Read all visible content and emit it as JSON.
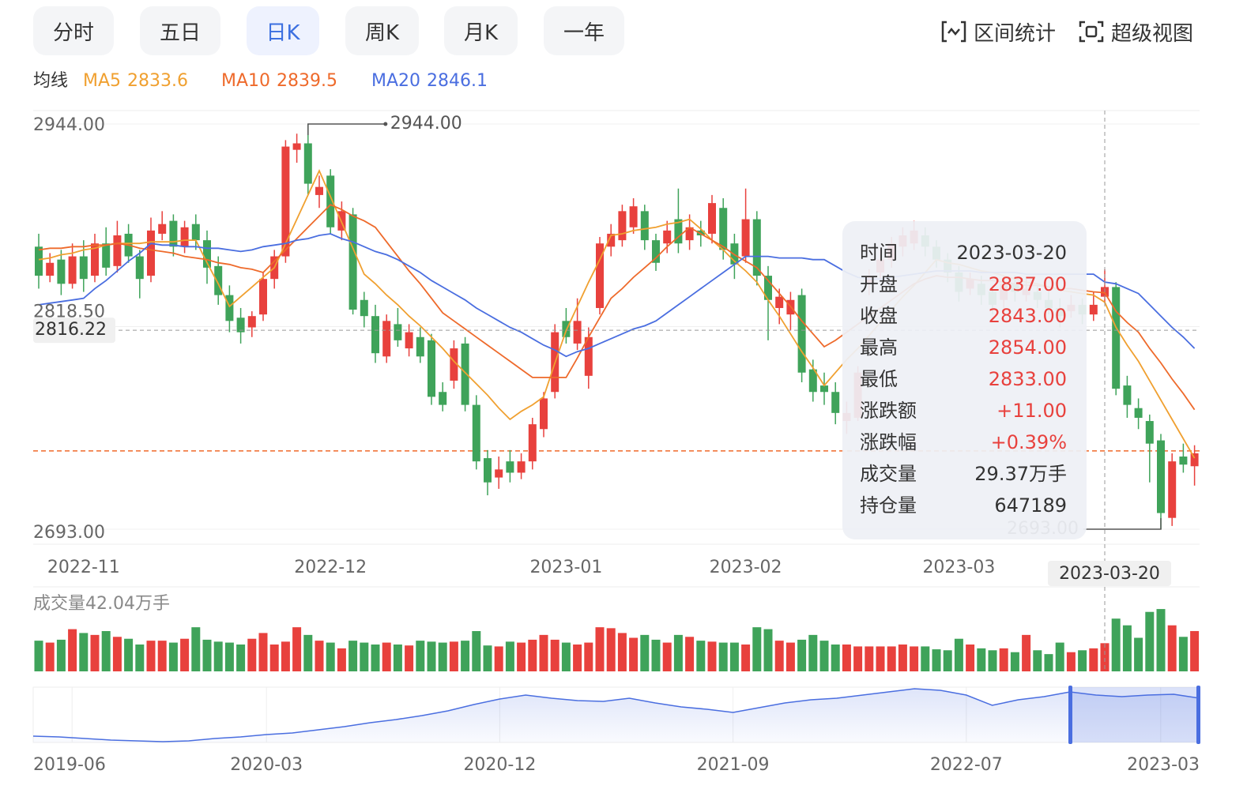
{
  "tabs": [
    "分时",
    "五日",
    "日K",
    "周K",
    "月K",
    "一年"
  ],
  "active_tab": 2,
  "tools": [
    "区间统计",
    "超级视图"
  ],
  "chart_data": {
    "type": "candlestick",
    "ma_legend_title": "均线",
    "categories": [
      null,
      null,
      null,
      null,
      "2022-11",
      null,
      null,
      null,
      null,
      null,
      null,
      null,
      null,
      null,
      null,
      null,
      null,
      null,
      null,
      null,
      null,
      null,
      null,
      null,
      null,
      null,
      "2022-12",
      null,
      null,
      null,
      null,
      null,
      null,
      null,
      null,
      null,
      null,
      null,
      null,
      null,
      null,
      null,
      null,
      null,
      null,
      null,
      null,
      "2023-01",
      null,
      null,
      null,
      null,
      null,
      null,
      null,
      null,
      null,
      null,
      null,
      null,
      null,
      null,
      null,
      "2023-02",
      null,
      null,
      null,
      null,
      null,
      null,
      null,
      null,
      null,
      null,
      null,
      null,
      null,
      null,
      null,
      null,
      null,
      null,
      "2023-03",
      null,
      null,
      null,
      null,
      null,
      null,
      null,
      null,
      null,
      null,
      null,
      null,
      null,
      null,
      null,
      null,
      null,
      null,
      null,
      null,
      null
    ],
    "up_color": "#e8413d",
    "down_color": "#3fa35a",
    "ylim": [
      2683.7,
      2952.3
    ],
    "yticks": [
      {
        "value": 2944,
        "label": "2944.00"
      },
      {
        "value": 2818.5,
        "label": "2818.50"
      },
      {
        "value": 2693,
        "label": "2693.00"
      }
    ],
    "max_annotation": {
      "index": 24,
      "value": 2944,
      "label": "2944.00"
    },
    "min_annotation": {
      "index": 100,
      "value": 2693,
      "label": "2693.00"
    },
    "reference_line": {
      "value": 2741.5,
      "color": "#f06a2b"
    },
    "crosshair": {
      "index": 95,
      "x_label": "2023-03-20",
      "y": 2816.22
    },
    "ohlc": [
      [
        2868,
        2876,
        2842,
        2850
      ],
      [
        2850,
        2864,
        2846,
        2858
      ],
      [
        2860,
        2866,
        2838,
        2845
      ],
      [
        2845,
        2870,
        2842,
        2862
      ],
      [
        2862,
        2872,
        2840,
        2848
      ],
      [
        2850,
        2876,
        2846,
        2870
      ],
      [
        2870,
        2880,
        2850,
        2855
      ],
      [
        2856,
        2884,
        2852,
        2875
      ],
      [
        2876,
        2882,
        2858,
        2862
      ],
      [
        2862,
        2866,
        2836,
        2848
      ],
      [
        2850,
        2886,
        2846,
        2878
      ],
      [
        2876,
        2890,
        2872,
        2882
      ],
      [
        2884,
        2888,
        2862,
        2868
      ],
      [
        2868,
        2884,
        2864,
        2880
      ],
      [
        2882,
        2888,
        2866,
        2872
      ],
      [
        2872,
        2878,
        2845,
        2855
      ],
      [
        2856,
        2862,
        2832,
        2838
      ],
      [
        2838,
        2844,
        2815,
        2822
      ],
      [
        2824,
        2830,
        2808,
        2815
      ],
      [
        2818,
        2828,
        2812,
        2825
      ],
      [
        2826,
        2852,
        2822,
        2848
      ],
      [
        2848,
        2866,
        2842,
        2862
      ],
      [
        2862,
        2934,
        2858,
        2930
      ],
      [
        2928,
        2938,
        2920,
        2932
      ],
      [
        2932,
        2944,
        2900,
        2907
      ],
      [
        2900,
        2912,
        2892,
        2905
      ],
      [
        2912,
        2916,
        2876,
        2880
      ],
      [
        2878,
        2896,
        2872,
        2890
      ],
      [
        2888,
        2892,
        2826,
        2829
      ],
      [
        2835,
        2840,
        2818,
        2825
      ],
      [
        2825,
        2832,
        2796,
        2802
      ],
      [
        2800,
        2826,
        2796,
        2822
      ],
      [
        2820,
        2830,
        2806,
        2810
      ],
      [
        2805,
        2820,
        2800,
        2815
      ],
      [
        2812,
        2818,
        2796,
        2800
      ],
      [
        2810,
        2814,
        2770,
        2775
      ],
      [
        2778,
        2784,
        2766,
        2770
      ],
      [
        2785,
        2810,
        2780,
        2805
      ],
      [
        2808,
        2812,
        2766,
        2770
      ],
      [
        2770,
        2776,
        2730,
        2735
      ],
      [
        2737,
        2742,
        2714,
        2722
      ],
      [
        2725,
        2738,
        2718,
        2730
      ],
      [
        2735,
        2742,
        2722,
        2728
      ],
      [
        2728,
        2740,
        2724,
        2735
      ],
      [
        2735,
        2762,
        2730,
        2758
      ],
      [
        2755,
        2778,
        2750,
        2774
      ],
      [
        2778,
        2820,
        2774,
        2815
      ],
      [
        2822,
        2830,
        2808,
        2812
      ],
      [
        2808,
        2836,
        2804,
        2822
      ],
      [
        2788,
        2818,
        2780,
        2812
      ],
      [
        2830,
        2874,
        2826,
        2870
      ],
      [
        2868,
        2882,
        2862,
        2876
      ],
      [
        2872,
        2894,
        2868,
        2890
      ],
      [
        2880,
        2898,
        2876,
        2893
      ],
      [
        2890,
        2894,
        2866,
        2872
      ],
      [
        2872,
        2876,
        2853,
        2858
      ],
      [
        2870,
        2884,
        2864,
        2878
      ],
      [
        2885,
        2904,
        2864,
        2870
      ],
      [
        2872,
        2888,
        2866,
        2880
      ],
      [
        2878,
        2884,
        2868,
        2875
      ],
      [
        2876,
        2900,
        2870,
        2895
      ],
      [
        2892,
        2898,
        2860,
        2866
      ],
      [
        2870,
        2876,
        2848,
        2857
      ],
      [
        2862,
        2904,
        2858,
        2885
      ],
      [
        2885,
        2890,
        2844,
        2850
      ],
      [
        2850,
        2856,
        2810,
        2835
      ],
      [
        2830,
        2842,
        2820,
        2837
      ],
      [
        2826,
        2840,
        2816,
        2835
      ],
      [
        2838,
        2842,
        2784,
        2790
      ],
      [
        2792,
        2798,
        2772,
        2778
      ],
      [
        2782,
        2790,
        2770,
        2778
      ],
      [
        2778,
        2784,
        2758,
        2765
      ],
      [
        2760,
        2772,
        2752,
        2765
      ],
      [
        2762,
        2794,
        2760,
        2790
      ],
      [
        2845,
        2854,
        2838,
        2850
      ],
      [
        2852,
        2866,
        2848,
        2860
      ],
      [
        2860,
        2874,
        2855,
        2870
      ],
      [
        2868,
        2880,
        2862,
        2875
      ],
      [
        2870,
        2884,
        2866,
        2878
      ],
      [
        2875,
        2880,
        2862,
        2868
      ],
      [
        2868,
        2872,
        2855,
        2860
      ],
      [
        2860,
        2864,
        2846,
        2852
      ],
      [
        2852,
        2856,
        2834,
        2840
      ],
      [
        2842,
        2852,
        2838,
        2848
      ],
      [
        2845,
        2850,
        2832,
        2838
      ],
      [
        2840,
        2844,
        2826,
        2832
      ],
      [
        2835,
        2850,
        2830,
        2845
      ],
      [
        2845,
        2850,
        2834,
        2840
      ],
      [
        2838,
        2848,
        2834,
        2842
      ],
      [
        2840,
        2844,
        2830,
        2835
      ],
      [
        2835,
        2840,
        2826,
        2830
      ],
      [
        2830,
        2836,
        2818,
        2825
      ],
      [
        2828,
        2838,
        2824,
        2832
      ],
      [
        2832,
        2836,
        2820,
        2826
      ],
      [
        2826,
        2840,
        2822,
        2832
      ],
      [
        2837,
        2854,
        2833,
        2843
      ],
      [
        2843,
        2846,
        2776,
        2780
      ],
      [
        2782,
        2788,
        2762,
        2770
      ],
      [
        2768,
        2774,
        2755,
        2762
      ],
      [
        2760,
        2764,
        2722,
        2746
      ],
      [
        2748,
        2752,
        2693,
        2703
      ],
      [
        2700,
        2740,
        2695,
        2735
      ],
      [
        2738,
        2746,
        2728,
        2733
      ],
      [
        2732,
        2745,
        2720,
        2740
      ]
    ],
    "series": [
      {
        "name": "MA5",
        "color": "#f0a030",
        "values": [
          2860,
          2861,
          2863,
          2864,
          2866,
          2867,
          2869,
          2870,
          2870,
          2870,
          2871,
          2871,
          2871,
          2872,
          2872,
          2858,
          2845,
          2831,
          2837,
          2843,
          2849,
          2855,
          2870,
          2885,
          2900,
          2915,
          2899,
          2883,
          2867,
          2851,
          2845,
          2838,
          2832,
          2825,
          2819,
          2812,
          2805,
          2797,
          2790,
          2783,
          2776,
          2768,
          2761,
          2766,
          2770,
          2775,
          2796,
          2816,
          2831,
          2846,
          2860,
          2875,
          2876,
          2878,
          2879,
          2880,
          2882,
          2883,
          2885,
          2879,
          2872,
          2866,
          2859,
          2853,
          2846,
          2835,
          2825,
          2814,
          2803,
          2793,
          2782,
          2790,
          2798,
          2805,
          2813,
          2821,
          2829,
          2837,
          2844,
          2852,
          2860,
          2858,
          2857,
          2855,
          2853,
          2852,
          2850,
          2848,
          2846,
          2845,
          2843,
          2841,
          2840,
          2839,
          2838,
          2833.6,
          2818,
          2807,
          2797,
          2785,
          2773,
          2761,
          2749,
          2737
        ]
      },
      {
        "name": "MA10",
        "color": "#ee6a2b",
        "values": [
          2866,
          2867,
          2867,
          2868,
          2868,
          2869,
          2869,
          2870,
          2869,
          2867,
          2866,
          2865,
          2864,
          2862,
          2861,
          2860,
          2858,
          2857,
          2855,
          2854,
          2852,
          2859,
          2866,
          2873,
          2880,
          2887,
          2894,
          2891,
          2887,
          2884,
          2880,
          2871,
          2862,
          2853,
          2845,
          2836,
          2827,
          2822,
          2817,
          2812,
          2807,
          2802,
          2797,
          2792,
          2787,
          2787,
          2787,
          2787,
          2799,
          2812,
          2824,
          2836,
          2842,
          2849,
          2855,
          2861,
          2868,
          2874,
          2880,
          2876,
          2872,
          2868,
          2863,
          2859,
          2855,
          2847,
          2839,
          2831,
          2822,
          2814,
          2806,
          2810,
          2815,
          2820,
          2825,
          2830,
          2835,
          2840,
          2845,
          2848,
          2850,
          2849,
          2849,
          2848,
          2847,
          2847,
          2846,
          2845,
          2844,
          2844,
          2843,
          2842,
          2842,
          2841,
          2840,
          2839.5,
          2828,
          2821,
          2815,
          2805,
          2796,
          2786,
          2777,
          2767
        ]
      },
      {
        "name": "MA20",
        "color": "#4a6ee0",
        "values": [
          2832,
          2833,
          2834,
          2835,
          2836,
          2842,
          2847,
          2853,
          2859,
          2864,
          2870,
          2869,
          2869,
          2868,
          2868,
          2867,
          2867,
          2866,
          2865,
          2866,
          2868,
          2869,
          2870,
          2872,
          2873,
          2875,
          2876,
          2873,
          2871,
          2868,
          2865,
          2863,
          2860,
          2856,
          2852,
          2847,
          2843,
          2839,
          2835,
          2830,
          2826,
          2822,
          2818,
          2815,
          2811,
          2807,
          2804,
          2800,
          2803,
          2805,
          2808,
          2811,
          2814,
          2817,
          2819,
          2822,
          2827,
          2832,
          2837,
          2842,
          2847,
          2852,
          2857,
          2862,
          2862,
          2862,
          2861,
          2861,
          2861,
          2860,
          2860,
          2856,
          2852,
          2849,
          2848,
          2848,
          2849,
          2850,
          2851,
          2852,
          2853,
          2853,
          2853,
          2853,
          2852,
          2852,
          2852,
          2852,
          2851,
          2851,
          2851,
          2851,
          2851,
          2851,
          2851,
          2846.1,
          2845,
          2842,
          2839,
          2832,
          2825,
          2818,
          2812,
          2805
        ]
      }
    ],
    "volume_title": "成交量42.04万手",
    "vlim": [
      0,
      70
    ],
    "volumes": [
      32,
      30,
      33,
      44,
      40,
      38,
      42,
      36,
      34,
      28,
      32,
      32,
      30,
      34,
      46,
      33,
      31,
      30,
      28,
      34,
      40,
      28,
      31,
      46,
      38,
      32,
      30,
      24,
      32,
      30,
      28,
      30,
      28,
      27,
      32,
      31,
      30,
      31,
      32,
      42,
      27,
      26,
      31,
      30,
      33,
      38,
      33,
      30,
      28,
      30,
      46,
      45,
      40,
      35,
      38,
      33,
      30,
      38,
      36,
      32,
      31,
      30,
      30,
      28,
      46,
      44,
      32,
      30,
      33,
      38,
      32,
      28,
      28,
      26,
      26,
      26,
      26,
      28,
      26,
      26,
      23,
      22,
      34,
      28,
      24,
      22,
      24,
      20,
      38,
      22,
      18,
      30,
      20,
      22,
      24,
      29.37,
      55,
      48,
      35,
      62,
      65,
      48,
      36,
      42.04
    ],
    "tooltip": [
      {
        "label": "时间",
        "value": "2023-03-20",
        "color": "#333333"
      },
      {
        "label": "开盘",
        "value": "2837.00",
        "color": "#e8413d"
      },
      {
        "label": "收盘",
        "value": "2843.00",
        "color": "#e8413d"
      },
      {
        "label": "最高",
        "value": "2854.00",
        "color": "#e8413d"
      },
      {
        "label": "最低",
        "value": "2833.00",
        "color": "#e8413d"
      },
      {
        "label": "涨跌额",
        "value": "+11.00",
        "color": "#e8413d"
      },
      {
        "label": "涨跌幅",
        "value": "+0.39%",
        "color": "#e8413d"
      },
      {
        "label": "成交量",
        "value": "29.37万手",
        "color": "#333333"
      },
      {
        "label": "持仓量",
        "value": "647189",
        "color": "#333333"
      }
    ],
    "navigator": {
      "color": "#4a6ee0",
      "xlim": [
        0,
        45
      ],
      "ylim": [
        1340,
        3090
      ],
      "values": [
        1540,
        1515,
        1465,
        1415,
        1390,
        1365,
        1390,
        1465,
        1515,
        1590,
        1640,
        1740,
        1840,
        1965,
        2065,
        2190,
        2340,
        2540,
        2715,
        2840,
        2740,
        2665,
        2640,
        2740,
        2590,
        2465,
        2390,
        2290,
        2440,
        2590,
        2690,
        2740,
        2840,
        2940,
        3040,
        2990,
        2840,
        2515,
        2690,
        2790,
        2940,
        2840,
        2790,
        2840,
        2865,
        2740
      ],
      "xticks": [
        {
          "value": 1.5,
          "label": "2019-06"
        },
        {
          "value": 9,
          "label": "2020-03"
        },
        {
          "value": 18,
          "label": "2020-12"
        },
        {
          "value": 27,
          "label": "2021-09"
        },
        {
          "value": 36,
          "label": "2022-07"
        },
        {
          "value": 43.5,
          "label": "2023-03"
        }
      ],
      "window": [
        40,
        45
      ]
    }
  }
}
